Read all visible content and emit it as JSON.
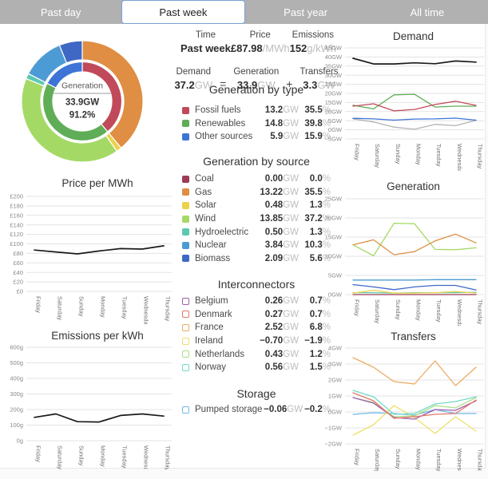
{
  "tabs": {
    "items": [
      {
        "label": "Past day",
        "selected": false
      },
      {
        "label": "Past week",
        "selected": true
      },
      {
        "label": "Past year",
        "selected": false
      },
      {
        "label": "All time",
        "selected": false
      }
    ]
  },
  "summary": {
    "time_label": "Time",
    "time_value": "Past week",
    "price_label": "Price",
    "price_value": "£87.98",
    "price_unit": "/MWh",
    "emissions_label": "Emissions",
    "emissions_value": "152",
    "emissions_unit": "g/kWh"
  },
  "equation": {
    "demand_label": "Demand",
    "demand_value": "37.2",
    "demand_unit": "GW",
    "equals_sign": "=",
    "generation_label": "Generation",
    "generation_value": "33.9",
    "generation_unit": "GW",
    "plus_sign": "+",
    "transfers_label": "Transfers",
    "transfers_value": "3.3",
    "transfers_unit": "GW"
  },
  "colors": {
    "tabbar": "#b1b1b1",
    "selected_tab_border": "#76a1d6",
    "fossil": "#c04a5a",
    "renewables": "#5fad56",
    "other": "#3d74d6",
    "coal": "#9e3a55",
    "gas": "#df8e43",
    "solar": "#ecd24b",
    "wind": "#a5d966",
    "hydroelectric": "#5cc8b1",
    "nuclear": "#4d9bd4",
    "biomass": "#3f68c5",
    "belgium": "#a05fae",
    "denmark": "#e5756c",
    "france": "#ecab62",
    "ireland": "#eee06c",
    "netherlands": "#abe086",
    "norway": "#72dac6",
    "pumped_storage": "#70b8e8",
    "demand_line": "#1a1a1a",
    "transfers_line": "#b3b3b3",
    "gridline": "#e3e3e3"
  },
  "sections": {
    "generation_by_type": {
      "title": "Generation by type",
      "unit": "GW",
      "percent_sign": "%",
      "rows": [
        {
          "label": "Fossil fuels",
          "value": "13.2",
          "percent": "35.5",
          "color": "#c04a5a",
          "swatch": "solid"
        },
        {
          "label": "Renewables",
          "value": "14.8",
          "percent": "39.8",
          "color": "#5fad56",
          "swatch": "solid"
        },
        {
          "label": "Other sources",
          "value": "5.9",
          "percent": "15.9",
          "color": "#3d74d6",
          "swatch": "solid"
        }
      ]
    },
    "generation_by_source": {
      "title": "Generation by source",
      "unit": "GW",
      "percent_sign": "%",
      "rows": [
        {
          "label": "Coal",
          "value": "0.00",
          "percent": "0.0",
          "color": "#9e3a55",
          "swatch": "solid"
        },
        {
          "label": "Gas",
          "value": "13.22",
          "percent": "35.5",
          "color": "#df8e43",
          "swatch": "solid"
        },
        {
          "label": "Solar",
          "value": "0.48",
          "percent": "1.3",
          "color": "#ecd24b",
          "swatch": "solid"
        },
        {
          "label": "Wind",
          "value": "13.85",
          "percent": "37.2",
          "color": "#a5d966",
          "swatch": "solid"
        },
        {
          "label": "Hydroelectric",
          "value": "0.50",
          "percent": "1.3",
          "color": "#5cc8b1",
          "swatch": "solid"
        },
        {
          "label": "Nuclear",
          "value": "3.84",
          "percent": "10.3",
          "color": "#4d9bd4",
          "swatch": "solid"
        },
        {
          "label": "Biomass",
          "value": "2.09",
          "percent": "5.6",
          "color": "#3f68c5",
          "swatch": "solid"
        }
      ]
    },
    "interconnectors": {
      "title": "Interconnectors",
      "unit": "GW",
      "percent_sign": "%",
      "rows": [
        {
          "label": "Belgium",
          "value": "0.26",
          "percent": "0.7",
          "color": "#a05fae",
          "swatch": "outline"
        },
        {
          "label": "Denmark",
          "value": "0.27",
          "percent": "0.7",
          "color": "#e5756c",
          "swatch": "outline"
        },
        {
          "label": "France",
          "value": "2.52",
          "percent": "6.8",
          "color": "#ecab62",
          "swatch": "outline"
        },
        {
          "label": "Ireland",
          "value": "−0.70",
          "percent": "−1.9",
          "color": "#eee06c",
          "swatch": "outline"
        },
        {
          "label": "Netherlands",
          "value": "0.43",
          "percent": "1.2",
          "color": "#abe086",
          "swatch": "outline"
        },
        {
          "label": "Norway",
          "value": "0.56",
          "percent": "1.5",
          "color": "#72dac6",
          "swatch": "outline"
        }
      ]
    },
    "storage": {
      "title": "Storage",
      "unit": "GW",
      "percent_sign": "%",
      "rows": [
        {
          "label": "Pumped storage",
          "value": "−0.06",
          "percent": "−0.2",
          "color": "#70b8e8",
          "swatch": "outline"
        }
      ]
    }
  },
  "chart_data": [
    {
      "id": "donut_generation",
      "type": "donut",
      "title": "Generation",
      "center": {
        "label": "Generation",
        "value": "33.9GW",
        "percent": "91.2%"
      },
      "inner_ring": [
        {
          "name": "Fossil fuels",
          "pct": 35.5,
          "color": "#c04a5a"
        },
        {
          "name": "Renewables",
          "pct": 39.8,
          "color": "#5fad56"
        },
        {
          "name": "Other sources",
          "pct": 15.9,
          "color": "#3d74d6"
        }
      ],
      "outer_ring": [
        {
          "name": "Gas",
          "pct": 35.5,
          "color": "#df8e43"
        },
        {
          "name": "Solar",
          "pct": 1.3,
          "color": "#ecd24b"
        },
        {
          "name": "Wind",
          "pct": 37.2,
          "color": "#a5d966"
        },
        {
          "name": "Hydroelectric",
          "pct": 1.3,
          "color": "#5cc8b1"
        },
        {
          "name": "Nuclear",
          "pct": 10.3,
          "color": "#4d9bd4"
        },
        {
          "name": "Biomass",
          "pct": 5.6,
          "color": "#3f68c5"
        }
      ]
    },
    {
      "id": "price",
      "type": "line",
      "title": "Price per MWh",
      "categories": [
        "Friday",
        "Saturday",
        "Sunday",
        "Monday",
        "Tuesday",
        "Wednesday",
        "Thursday"
      ],
      "ylim": [
        0,
        200
      ],
      "ytick_step": 20,
      "ytick_prefix": "£",
      "ytick_suffix": "",
      "grid": true,
      "legend": "none",
      "series": [
        {
          "name": "Price",
          "color": "#1a1a1a",
          "width": 1.7,
          "values": [
            87,
            83,
            79,
            85,
            90,
            89,
            96
          ]
        }
      ]
    },
    {
      "id": "emissions",
      "type": "line",
      "title": "Emissions per kWh",
      "categories": [
        "Friday",
        "Saturday",
        "Sunday",
        "Monday",
        "Tuesday",
        "Wednesday",
        "Thursday"
      ],
      "ylim": [
        0,
        600
      ],
      "ytick_step": 100,
      "ytick_prefix": "",
      "ytick_suffix": "g",
      "grid": true,
      "legend": "none",
      "series": [
        {
          "name": "Emissions",
          "color": "#1a1a1a",
          "width": 1.7,
          "values": [
            150,
            172,
            122,
            120,
            162,
            172,
            158
          ]
        }
      ]
    },
    {
      "id": "demand",
      "type": "line",
      "title": "Demand",
      "categories": [
        "Friday",
        "Saturday",
        "Sunday",
        "Monday",
        "Tuesday",
        "Wednesday",
        "Thursday"
      ],
      "ylim": [
        -5,
        45
      ],
      "ytick_step": 5,
      "ytick_prefix": "",
      "ytick_suffix": "GW",
      "grid": true,
      "legend": "none",
      "series": [
        {
          "name": "Demand",
          "color": "#1a1a1a",
          "width": 1.7,
          "values": [
            39.3,
            36.2,
            36.2,
            36.8,
            36.3,
            37.8,
            37.2
          ]
        },
        {
          "name": "Fossil fuels",
          "color": "#c04a5a",
          "width": 1.3,
          "values": [
            13.0,
            14.3,
            10.4,
            11.2,
            13.9,
            15.7,
            13.4
          ]
        },
        {
          "name": "Renewables",
          "color": "#5fad56",
          "width": 1.3,
          "values": [
            13.5,
            11.5,
            19.2,
            19.5,
            12.5,
            13.0,
            13.0
          ]
        },
        {
          "name": "Other sources",
          "color": "#3d74d6",
          "width": 1.3,
          "values": [
            6.3,
            6.0,
            5.3,
            5.9,
            6.0,
            6.4,
            5.3
          ]
        },
        {
          "name": "Transfers",
          "color": "#b3b3b3",
          "width": 1.3,
          "values": [
            6.0,
            4.3,
            1.5,
            0.3,
            3.0,
            2.3,
            5.2
          ]
        }
      ]
    },
    {
      "id": "generation",
      "type": "line",
      "title": "Generation",
      "categories": [
        "Friday",
        "Saturday",
        "Sunday",
        "Monday",
        "Tuesday",
        "Wednesday",
        "Thursday"
      ],
      "ylim": [
        0,
        25
      ],
      "ytick_step": 5,
      "ytick_prefix": "",
      "ytick_suffix": "GW",
      "grid": true,
      "legend": "none",
      "series": [
        {
          "name": "Gas",
          "color": "#df8e43",
          "width": 1.3,
          "values": [
            13.0,
            14.3,
            10.4,
            11.2,
            14.0,
            15.8,
            13.5
          ]
        },
        {
          "name": "Wind",
          "color": "#a5d966",
          "width": 1.3,
          "values": [
            13.0,
            10.1,
            18.6,
            18.5,
            11.8,
            11.7,
            12.2
          ]
        },
        {
          "name": "Nuclear",
          "color": "#4d9bd4",
          "width": 1.3,
          "values": [
            3.8,
            3.8,
            3.8,
            3.8,
            3.9,
            3.9,
            3.9
          ]
        },
        {
          "name": "Biomass",
          "color": "#3f68c5",
          "width": 1.3,
          "values": [
            2.6,
            2.0,
            1.3,
            2.0,
            2.4,
            2.4,
            1.2
          ]
        },
        {
          "name": "Solar",
          "color": "#ecd24b",
          "width": 1.3,
          "values": [
            0.4,
            1.1,
            0.4,
            0.4,
            0.5,
            0.8,
            0.4
          ]
        },
        {
          "name": "Hydroelectric",
          "color": "#5cc8b1",
          "width": 1.3,
          "values": [
            0.5,
            0.5,
            0.4,
            0.5,
            0.5,
            0.5,
            0.6
          ]
        },
        {
          "name": "Coal",
          "color": "#9e3a55",
          "width": 1.3,
          "values": [
            0,
            0,
            0,
            0,
            0,
            0,
            0
          ]
        }
      ]
    },
    {
      "id": "transfers",
      "type": "line",
      "title": "Transfers",
      "categories": [
        "Friday",
        "Saturday",
        "Sunday",
        "Monday",
        "Tuesday",
        "Wednesday",
        "Thursday"
      ],
      "ylim": [
        -2,
        4
      ],
      "ytick_step": 1,
      "ytick_prefix": "",
      "ytick_suffix": "GW",
      "grid": true,
      "legend": "none",
      "series": [
        {
          "name": "France",
          "color": "#ecab62",
          "width": 1.3,
          "values": [
            3.4,
            2.8,
            1.9,
            1.75,
            3.2,
            1.65,
            2.8
          ]
        },
        {
          "name": "Norway",
          "color": "#72dac6",
          "width": 1.3,
          "values": [
            1.35,
            0.95,
            -0.15,
            -0.1,
            0.5,
            0.65,
            0.95
          ]
        },
        {
          "name": "Denmark",
          "color": "#e5756c",
          "width": 1.3,
          "values": [
            1.2,
            0.7,
            -0.4,
            -0.3,
            -0.15,
            -0.1,
            0.75
          ]
        },
        {
          "name": "Belgium",
          "color": "#a05fae",
          "width": 1.3,
          "values": [
            0.9,
            0.55,
            -0.35,
            -0.45,
            0.15,
            0.1,
            0.7
          ]
        },
        {
          "name": "Netherlands",
          "color": "#abe086",
          "width": 1.3,
          "values": [
            0.9,
            0.6,
            -0.3,
            -0.25,
            0.4,
            0.25,
            0.9
          ]
        },
        {
          "name": "Ireland",
          "color": "#eee06c",
          "width": 1.3,
          "values": [
            -1.45,
            -0.8,
            0.4,
            -0.35,
            -1.35,
            -0.3,
            -1.2
          ]
        },
        {
          "name": "Pumped storage",
          "color": "#70b8e8",
          "width": 1.3,
          "values": [
            -0.15,
            -0.05,
            -0.1,
            -0.2,
            0.15,
            -0.1,
            -0.1
          ]
        }
      ]
    }
  ]
}
